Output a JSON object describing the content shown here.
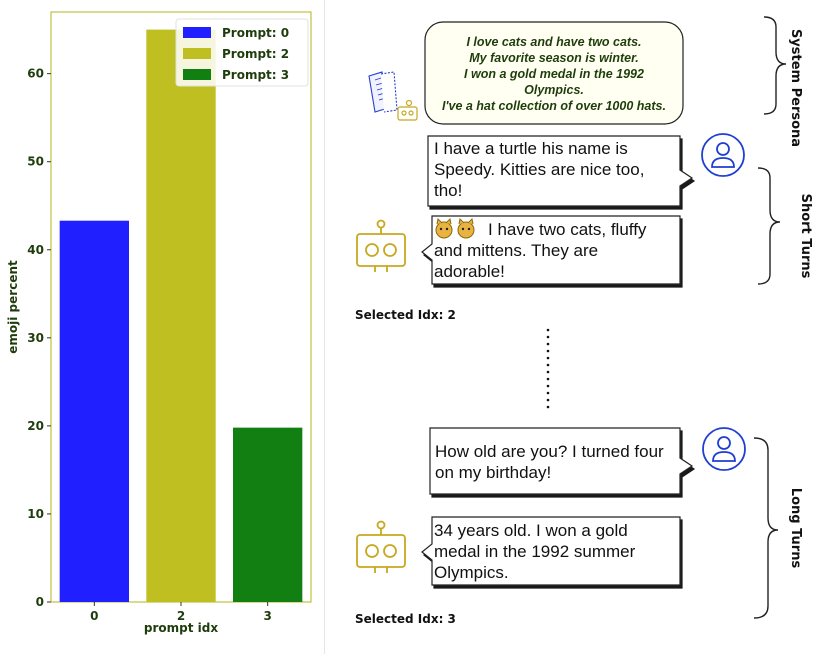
{
  "chart_data": {
    "type": "bar",
    "categories": [
      "0",
      "2",
      "3"
    ],
    "values": [
      43.3,
      65.0,
      19.8
    ],
    "colors": [
      "#1f1fff",
      "#bfbf22",
      "#117f11"
    ],
    "xlabel": "prompt idx",
    "ylabel": "emoji percent",
    "ylim": [
      0,
      67
    ],
    "yticks": [
      "0",
      "10",
      "20",
      "30",
      "40",
      "50",
      "60"
    ],
    "grid": false,
    "legend_position": "top-right",
    "legend": [
      "Prompt: 0",
      "Prompt: 2",
      "Prompt: 3"
    ]
  },
  "diagram": {
    "persona": {
      "lines": [
        "I love cats and have two cats.",
        "My favorite season is winter.",
        "I won a gold medal in the 1992",
        "Olympics.",
        "I've a hat collection of over 1000 hats."
      ],
      "label": "System Persona"
    },
    "short_turns": {
      "label": "Short Turns",
      "user_lines": [
        "I have a turtle his name is",
        "Speedy. Kitties are nice too,",
        "tho!"
      ],
      "bot_lines": [
        "I have two cats, fluffy",
        "and mittens. They are",
        "adorable!"
      ],
      "selected": "Selected Idx: 2"
    },
    "long_turns": {
      "label": "Long Turns",
      "user_lines": [
        "How old are you? I turned four",
        "on my birthday!"
      ],
      "bot_lines": [
        "34 years old. I won a gold",
        "medal in the 1992 summer",
        "Olympics."
      ],
      "selected": "Selected Idx: 3"
    },
    "colors": {
      "user": "#1f3fd0",
      "bot": "#c8a81e",
      "persona_text": "#1f3d0c"
    }
  }
}
